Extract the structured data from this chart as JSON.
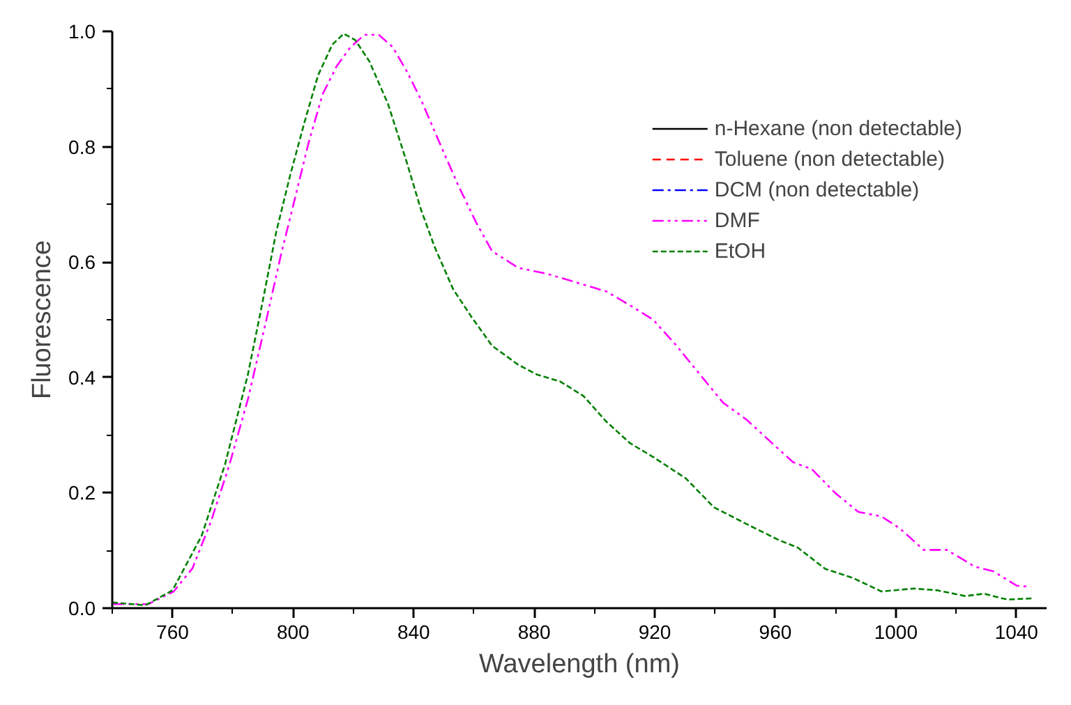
{
  "chart_data": {
    "type": "line",
    "xlabel": "Wavelength (nm)",
    "ylabel": "Fluorescence",
    "xlim": [
      740,
      1050
    ],
    "ylim": [
      0,
      1
    ],
    "xticks": [
      {
        "value": 740,
        "label": null
      },
      760,
      {
        "value": 780,
        "label": null
      },
      800,
      {
        "value": 820,
        "label": null
      },
      840,
      {
        "value": 860,
        "label": null
      },
      880,
      {
        "value": 900,
        "label": null
      },
      920,
      {
        "value": 940,
        "label": null
      },
      960,
      {
        "value": 980,
        "label": null
      },
      1000,
      {
        "value": 1020,
        "label": null
      },
      1040
    ],
    "yticks": [
      {
        "value": 0,
        "label": "0.0"
      },
      {
        "value": 0.1,
        "label": null
      },
      {
        "value": 0.2,
        "label": "0.2"
      },
      {
        "value": 0.3,
        "label": null
      },
      {
        "value": 0.4,
        "label": "0.4"
      },
      {
        "value": 0.5,
        "label": null
      },
      {
        "value": 0.6,
        "label": "0.6"
      },
      {
        "value": 0.7,
        "label": null
      },
      {
        "value": 0.8,
        "label": "0.8"
      },
      {
        "value": 0.9,
        "label": null
      },
      {
        "value": 1.0,
        "label": "1.0"
      }
    ],
    "grid": false,
    "legend": "top right",
    "marker": "none",
    "series": [
      {
        "name": "n-Hexane (non detectable)",
        "color": "#000000",
        "line_style": "solid"
      },
      {
        "name": "Toluene (non detectable)",
        "color": "#ff0000",
        "line_style": "dashed"
      },
      {
        "name": "DCM (non detectable)",
        "color": "#0000ff",
        "line_style": "dashdot"
      },
      {
        "name": "DMF",
        "color": "#ff00ff",
        "line_style": "dashdotdot",
        "x": [
          740.3,
          752,
          760.4,
          766.6,
          772.8,
          778.9,
          785.1,
          791.3,
          795.9,
          800.6,
          805.2,
          809.8,
          814.5,
          819.1,
          823.7,
          828.4,
          833,
          837.6,
          842.3,
          848.5,
          854.7,
          860.8,
          866,
          874.7,
          884,
          893.2,
          904,
          911.8,
          919.5,
          927.2,
          935,
          942.7,
          950.4,
          958.1,
          965.9,
          972.1,
          979.8,
          987.5,
          995.2,
          1001.4,
          1009.2,
          1016.9,
          1026.2,
          1032.3,
          1040.1,
          1044.7
        ],
        "values": [
          0.007,
          0.007,
          0.029,
          0.069,
          0.151,
          0.249,
          0.364,
          0.504,
          0.611,
          0.71,
          0.808,
          0.891,
          0.94,
          0.973,
          0.994,
          0.994,
          0.973,
          0.932,
          0.883,
          0.808,
          0.734,
          0.668,
          0.619,
          0.59,
          0.58,
          0.566,
          0.549,
          0.525,
          0.5,
          0.455,
          0.405,
          0.356,
          0.327,
          0.29,
          0.253,
          0.241,
          0.2,
          0.167,
          0.159,
          0.138,
          0.101,
          0.101,
          0.072,
          0.064,
          0.039,
          0.037
        ]
      },
      {
        "name": "EtOH",
        "color": "#008000",
        "line_style": "dashed",
        "x": [
          740,
          751,
          760,
          769.7,
          777.4,
          785,
          789.8,
          794.4,
          799,
          803.7,
          808.3,
          813,
          816.8,
          820.6,
          825.3,
          831.5,
          837.6,
          842.3,
          846.9,
          853.1,
          859.3,
          866,
          874.7,
          880.9,
          888.6,
          896.3,
          904,
          911.8,
          919.5,
          930.3,
          939.6,
          950.4,
          961.2,
          967.4,
          976.6,
          985.9,
          995.2,
          1006,
          1013.7,
          1023,
          1029.2,
          1036.9,
          1045.4
        ],
        "values": [
          0.01,
          0.005,
          0.031,
          0.126,
          0.249,
          0.405,
          0.529,
          0.652,
          0.75,
          0.841,
          0.924,
          0.977,
          0.996,
          0.985,
          0.948,
          0.874,
          0.775,
          0.693,
          0.627,
          0.553,
          0.504,
          0.455,
          0.422,
          0.405,
          0.393,
          0.368,
          0.323,
          0.286,
          0.262,
          0.225,
          0.175,
          0.146,
          0.118,
          0.105,
          0.068,
          0.052,
          0.029,
          0.034,
          0.031,
          0.021,
          0.025,
          0.015,
          0.017
        ]
      }
    ]
  }
}
